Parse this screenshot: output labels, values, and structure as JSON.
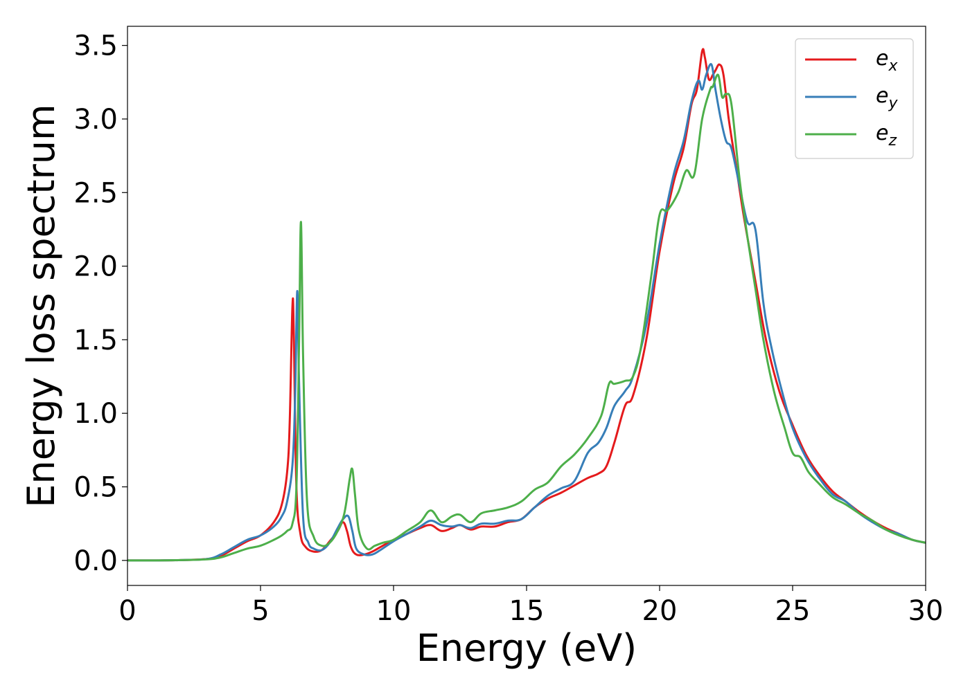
{
  "chart_data": {
    "type": "line",
    "title": "",
    "xlabel": "Energy (eV)",
    "ylabel": "Energy loss spectrum",
    "xlim": [
      0,
      30
    ],
    "ylim": [
      -0.17,
      3.63
    ],
    "xticks": [
      0,
      5,
      10,
      15,
      20,
      25,
      30
    ],
    "xtick_labels": [
      "0",
      "5",
      "10",
      "15",
      "20",
      "25",
      "30"
    ],
    "yticks": [
      0.0,
      0.5,
      1.0,
      1.5,
      2.0,
      2.5,
      3.0,
      3.5
    ],
    "ytick_labels": [
      "0.0",
      "0.5",
      "1.0",
      "1.5",
      "2.0",
      "2.5",
      "3.0",
      "3.5"
    ],
    "grid": false,
    "legend_position": "top-right",
    "series": [
      {
        "name": "e_x",
        "label_base": "e",
        "label_sub": "x",
        "color": "#e41a1c",
        "x": [
          0,
          1,
          2,
          3,
          3.5,
          4,
          4.5,
          5,
          5.5,
          5.8,
          6.0,
          6.1,
          6.2,
          6.25,
          6.35,
          6.5,
          6.7,
          7.0,
          7.3,
          7.6,
          7.9,
          8.1,
          8.25,
          8.4,
          8.6,
          8.9,
          9.2,
          9.5,
          10,
          10.5,
          11,
          11.4,
          11.8,
          12.2,
          12.5,
          12.9,
          13.3,
          13.8,
          14.3,
          14.8,
          15.3,
          15.8,
          16.3,
          16.8,
          17.3,
          17.7,
          18.0,
          18.3,
          18.7,
          19.0,
          19.5,
          20.0,
          20.5,
          20.9,
          21.2,
          21.4,
          21.6,
          21.7,
          21.85,
          22.0,
          22.1,
          22.25,
          22.4,
          22.6,
          22.9,
          23.2,
          23.6,
          24.0,
          24.5,
          25.0,
          25.5,
          26.0,
          26.5,
          27.0,
          27.5,
          28.0,
          28.5,
          29.0,
          29.5,
          30
        ],
        "y": [
          0.0,
          0.0,
          0.002,
          0.01,
          0.03,
          0.08,
          0.13,
          0.17,
          0.26,
          0.38,
          0.6,
          0.95,
          1.73,
          1.55,
          0.5,
          0.18,
          0.09,
          0.06,
          0.07,
          0.13,
          0.2,
          0.26,
          0.2,
          0.09,
          0.04,
          0.04,
          0.06,
          0.09,
          0.14,
          0.18,
          0.22,
          0.24,
          0.2,
          0.22,
          0.24,
          0.21,
          0.23,
          0.23,
          0.26,
          0.28,
          0.36,
          0.42,
          0.46,
          0.51,
          0.56,
          0.59,
          0.64,
          0.8,
          1.05,
          1.12,
          1.5,
          2.1,
          2.55,
          2.8,
          3.1,
          3.2,
          3.46,
          3.42,
          3.27,
          3.3,
          3.33,
          3.37,
          3.3,
          3.0,
          2.65,
          2.3,
          1.9,
          1.5,
          1.15,
          0.92,
          0.72,
          0.58,
          0.47,
          0.4,
          0.33,
          0.27,
          0.22,
          0.18,
          0.14,
          0.12
        ]
      },
      {
        "name": "e_y",
        "label_base": "e",
        "label_sub": "y",
        "color": "#377eb8",
        "x": [
          0,
          1,
          2,
          3,
          3.5,
          4,
          4.5,
          5,
          5.5,
          5.8,
          6.0,
          6.2,
          6.3,
          6.38,
          6.45,
          6.6,
          6.8,
          7.0,
          7.3,
          7.6,
          7.9,
          8.1,
          8.3,
          8.45,
          8.6,
          8.9,
          9.2,
          9.5,
          10,
          10.5,
          11,
          11.4,
          11.8,
          12.2,
          12.5,
          12.9,
          13.3,
          13.8,
          14.3,
          14.8,
          15.3,
          15.8,
          16.3,
          16.8,
          17.3,
          17.7,
          18.0,
          18.3,
          18.7,
          19.0,
          19.5,
          20.0,
          20.5,
          20.9,
          21.2,
          21.45,
          21.6,
          21.75,
          21.95,
          22.1,
          22.3,
          22.5,
          22.7,
          23.0,
          23.3,
          23.6,
          23.9,
          24.2,
          24.6,
          25.0,
          25.5,
          26.0,
          26.5,
          27.0,
          27.5,
          28.0,
          28.5,
          29.0,
          29.5,
          30
        ],
        "y": [
          0.0,
          0.0,
          0.002,
          0.01,
          0.04,
          0.09,
          0.14,
          0.17,
          0.23,
          0.3,
          0.4,
          0.65,
          1.1,
          1.83,
          1.2,
          0.3,
          0.12,
          0.08,
          0.07,
          0.12,
          0.22,
          0.28,
          0.3,
          0.2,
          0.08,
          0.04,
          0.04,
          0.07,
          0.13,
          0.18,
          0.23,
          0.27,
          0.24,
          0.23,
          0.24,
          0.22,
          0.25,
          0.25,
          0.27,
          0.28,
          0.36,
          0.44,
          0.49,
          0.54,
          0.73,
          0.8,
          0.9,
          1.05,
          1.15,
          1.25,
          1.6,
          2.15,
          2.6,
          2.85,
          3.12,
          3.26,
          3.2,
          3.3,
          3.37,
          3.2,
          3.0,
          2.85,
          2.8,
          2.55,
          2.3,
          2.25,
          1.75,
          1.45,
          1.15,
          0.9,
          0.7,
          0.56,
          0.45,
          0.4,
          0.32,
          0.26,
          0.21,
          0.18,
          0.14,
          0.12
        ]
      },
      {
        "name": "e_z",
        "label_base": "e",
        "label_sub": "z",
        "color": "#4daf4a",
        "x": [
          0,
          1,
          2,
          3,
          3.5,
          4,
          4.5,
          5,
          5.5,
          5.8,
          6.0,
          6.2,
          6.35,
          6.45,
          6.52,
          6.6,
          6.75,
          7.0,
          7.3,
          7.6,
          7.9,
          8.15,
          8.35,
          8.45,
          8.55,
          8.7,
          9.0,
          9.3,
          9.6,
          10,
          10.5,
          11,
          11.4,
          11.8,
          12.2,
          12.5,
          12.9,
          13.3,
          13.8,
          14.3,
          14.8,
          15.3,
          15.8,
          16.3,
          16.8,
          17.3,
          17.8,
          18.1,
          18.3,
          18.7,
          19.0,
          19.3,
          19.7,
          20.0,
          20.3,
          20.7,
          21.0,
          21.3,
          21.6,
          21.9,
          22.0,
          22.2,
          22.35,
          22.5,
          22.7,
          23.0,
          23.3,
          23.6,
          23.9,
          24.3,
          24.7,
          25.0,
          25.3,
          25.6,
          26.0,
          26.5,
          27.0,
          27.5,
          28.0,
          28.5,
          29.0,
          29.5,
          30
        ],
        "y": [
          0.0,
          0.0,
          0.002,
          0.008,
          0.02,
          0.05,
          0.08,
          0.1,
          0.14,
          0.17,
          0.2,
          0.25,
          0.5,
          1.5,
          2.3,
          1.4,
          0.4,
          0.16,
          0.1,
          0.12,
          0.2,
          0.32,
          0.55,
          0.62,
          0.45,
          0.2,
          0.08,
          0.1,
          0.12,
          0.14,
          0.2,
          0.26,
          0.34,
          0.26,
          0.3,
          0.31,
          0.26,
          0.32,
          0.34,
          0.36,
          0.4,
          0.48,
          0.53,
          0.64,
          0.72,
          0.83,
          0.98,
          1.2,
          1.2,
          1.22,
          1.25,
          1.45,
          1.95,
          2.35,
          2.38,
          2.5,
          2.65,
          2.62,
          3.0,
          3.2,
          3.22,
          3.3,
          3.15,
          3.17,
          3.1,
          2.6,
          2.2,
          1.85,
          1.5,
          1.15,
          0.9,
          0.73,
          0.7,
          0.6,
          0.52,
          0.43,
          0.38,
          0.32,
          0.27,
          0.21,
          0.17,
          0.14,
          0.12
        ]
      }
    ]
  }
}
